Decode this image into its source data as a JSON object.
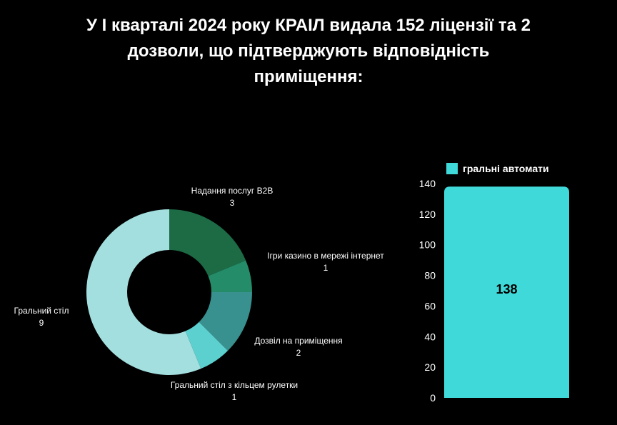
{
  "title": {
    "lines": [
      "У І кварталі 2024 року КРАІЛ видала 152 ліцензії та 2",
      "дозволи, що підтверджують відповідність",
      "приміщення:"
    ]
  },
  "colors": {
    "background": "#000000",
    "bar": "#3fd9d9"
  },
  "chart_data": [
    {
      "type": "pie",
      "donut": true,
      "slices": [
        {
          "label": "Надання послуг B2B",
          "value": 3,
          "value_label": "3",
          "color": "#1c6b45"
        },
        {
          "label": "Ігри казино в мережі інтернет",
          "value": 1,
          "value_label": "1",
          "color": "#248c69"
        },
        {
          "label": "Дозвіл на приміщення",
          "value": 2,
          "value_label": "2",
          "color": "#38908f"
        },
        {
          "label": "Гральний стіл з кільцем рулетки",
          "value": 1,
          "value_label": "1",
          "color": "#5ccfcf"
        },
        {
          "label": "Гральний стіл",
          "value": 9,
          "value_label": "9",
          "color": "#a3dfdf"
        }
      ]
    },
    {
      "type": "bar",
      "categories": [
        ""
      ],
      "series": [
        {
          "name": "гральні автомати",
          "values": [
            138
          ]
        }
      ],
      "value_label": "138",
      "ylim": [
        0,
        140
      ],
      "yticks": [
        "0",
        "20",
        "40",
        "60",
        "80",
        "100",
        "120",
        "140"
      ],
      "legend": "top"
    }
  ]
}
